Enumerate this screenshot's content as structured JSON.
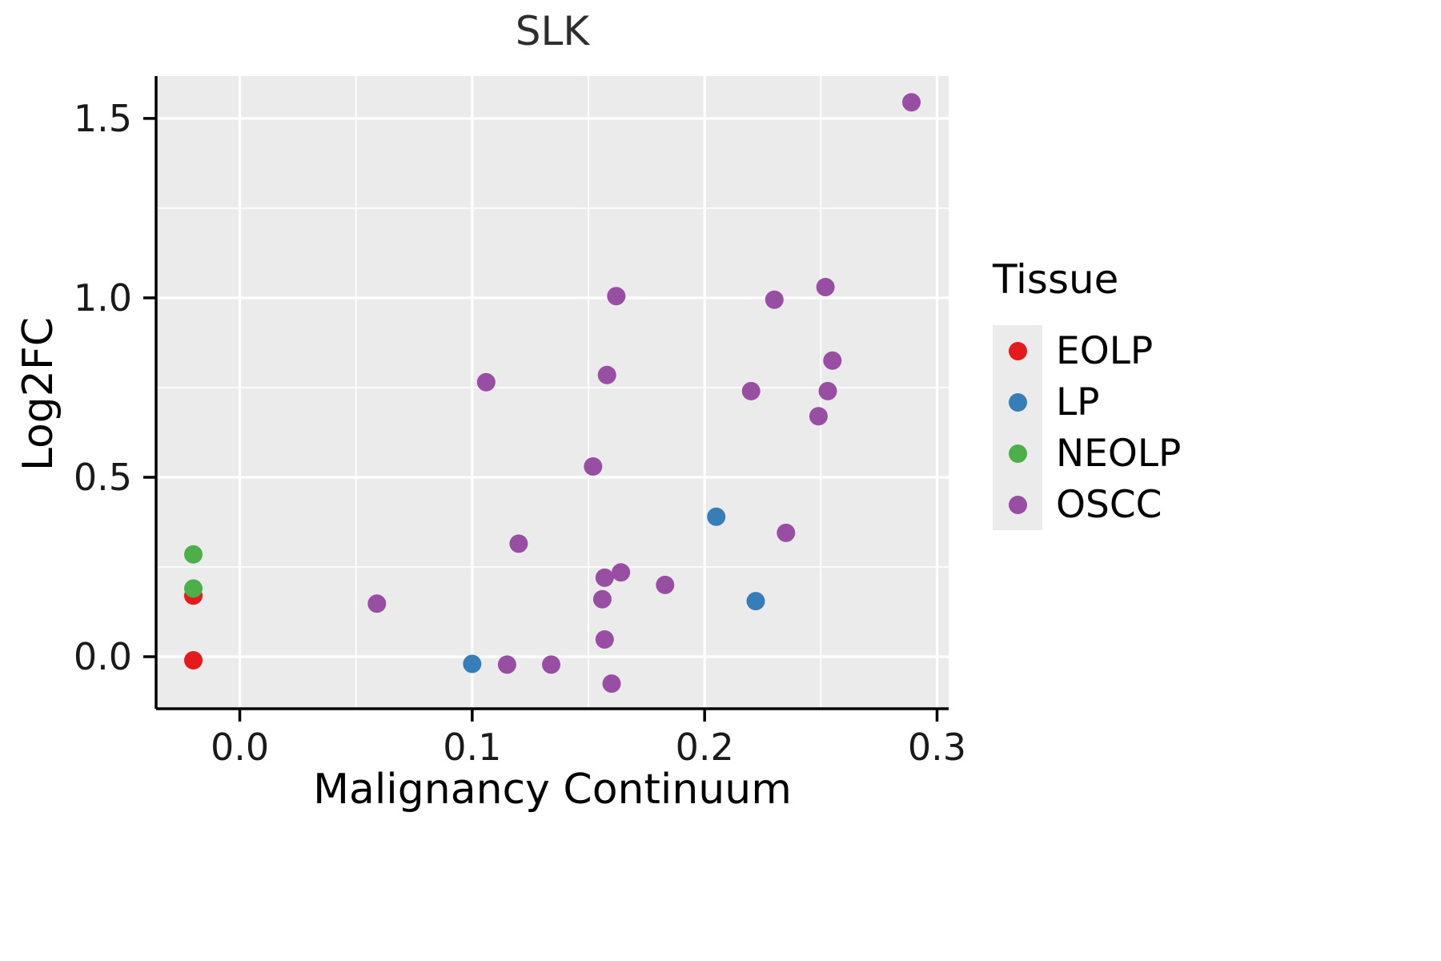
{
  "chart_data": {
    "type": "scatter",
    "title": "SLK",
    "xlabel": "Malignancy Continuum",
    "ylabel": "Log2FC",
    "legend_title": "Tissue",
    "legend_position": "right",
    "grid": true,
    "xlim": [
      -0.036,
      0.305
    ],
    "ylim": [
      -0.145,
      1.618
    ],
    "x_ticks": [
      0.0,
      0.1,
      0.2,
      0.3
    ],
    "x_tick_labels": [
      "0.0",
      "0.1",
      "0.2",
      "0.3"
    ],
    "y_ticks": [
      0.0,
      0.5,
      1.0,
      1.5
    ],
    "y_tick_labels": [
      "0.0",
      "0.5",
      "1.0",
      "1.5"
    ],
    "x_minor_gridlines": [
      0.05,
      0.15,
      0.25
    ],
    "y_minor_gridlines": [
      0.25,
      0.75,
      1.25
    ],
    "colors": {
      "panel_bg": "#ebebeb",
      "grid": "#ffffff",
      "axis": "#000000",
      "text": "#1a1a1a"
    },
    "series": [
      {
        "name": "EOLP",
        "color": "#e41a1c",
        "points": [
          [
            -0.02,
            0.17
          ],
          [
            -0.02,
            -0.01
          ]
        ]
      },
      {
        "name": "LP",
        "color": "#377eb8",
        "points": [
          [
            0.1,
            -0.02
          ],
          [
            0.205,
            0.39
          ],
          [
            0.222,
            0.155
          ]
        ]
      },
      {
        "name": "NEOLP",
        "color": "#4daf4a",
        "points": [
          [
            -0.02,
            0.285
          ],
          [
            -0.02,
            0.19
          ]
        ]
      },
      {
        "name": "OSCC",
        "color": "#984ea3",
        "points": [
          [
            0.289,
            1.545
          ],
          [
            0.162,
            1.005
          ],
          [
            0.23,
            0.995
          ],
          [
            0.252,
            1.03
          ],
          [
            0.106,
            0.765
          ],
          [
            0.158,
            0.785
          ],
          [
            0.22,
            0.74
          ],
          [
            0.255,
            0.825
          ],
          [
            0.253,
            0.74
          ],
          [
            0.249,
            0.67
          ],
          [
            0.152,
            0.53
          ],
          [
            0.12,
            0.315
          ],
          [
            0.235,
            0.345
          ],
          [
            0.157,
            0.22
          ],
          [
            0.164,
            0.235
          ],
          [
            0.183,
            0.2
          ],
          [
            0.156,
            0.16
          ],
          [
            0.059,
            0.148
          ],
          [
            0.157,
            0.048
          ],
          [
            0.115,
            -0.022
          ],
          [
            0.134,
            -0.022
          ],
          [
            0.16,
            -0.075
          ]
        ]
      }
    ]
  }
}
